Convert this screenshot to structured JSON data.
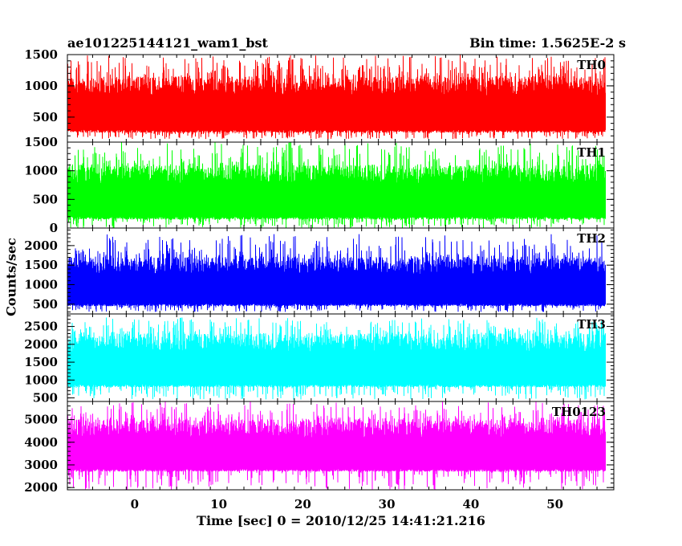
{
  "header": {
    "title": "ae101225144121_wam1_bst",
    "bin_time": "Bin time: 1.5625E-2 s"
  },
  "chart_data": {
    "type": "line",
    "xlabel": "Time [sec] 0 = 2010/12/25 14:41:21.216",
    "ylabel": "Counts/sec",
    "xlim": [
      -8,
      57
    ],
    "x_ticks": [
      0,
      10,
      20,
      30,
      40,
      50
    ],
    "data_x_range": [
      -8,
      56
    ],
    "grid": false,
    "panels": [
      {
        "name": "TH0",
        "color": "#ff0000",
        "ylim": [
          100,
          1500
        ],
        "yticks": [
          500,
          1000,
          1500
        ],
        "band": [
          250,
          1150
        ],
        "spike_max": 1500,
        "dip_min": 150
      },
      {
        "name": "TH1",
        "color": "#00ff00",
        "ylim": [
          0,
          1500
        ],
        "yticks": [
          0,
          500,
          1000,
          1500
        ],
        "band": [
          150,
          1100
        ],
        "spike_max": 1500,
        "dip_min": 0
      },
      {
        "name": "TH2",
        "color": "#0000ff",
        "ylim": [
          250,
          2450
        ],
        "yticks": [
          500,
          1000,
          1500,
          2000
        ],
        "band": [
          450,
          1700
        ],
        "spike_max": 2300,
        "dip_min": 300
      },
      {
        "name": "TH3",
        "color": "#00ffff",
        "ylim": [
          400,
          2850
        ],
        "yticks": [
          500,
          1000,
          1500,
          2000,
          2500
        ],
        "band": [
          800,
          2300
        ],
        "spike_max": 2750,
        "dip_min": 450
      },
      {
        "name": "TH0123",
        "color": "#ff00ff",
        "ylim": [
          1900,
          5800
        ],
        "yticks": [
          2000,
          3000,
          4000,
          5000
        ],
        "band": [
          2700,
          5000
        ],
        "spike_max": 5800,
        "dip_min": 1900
      }
    ]
  }
}
